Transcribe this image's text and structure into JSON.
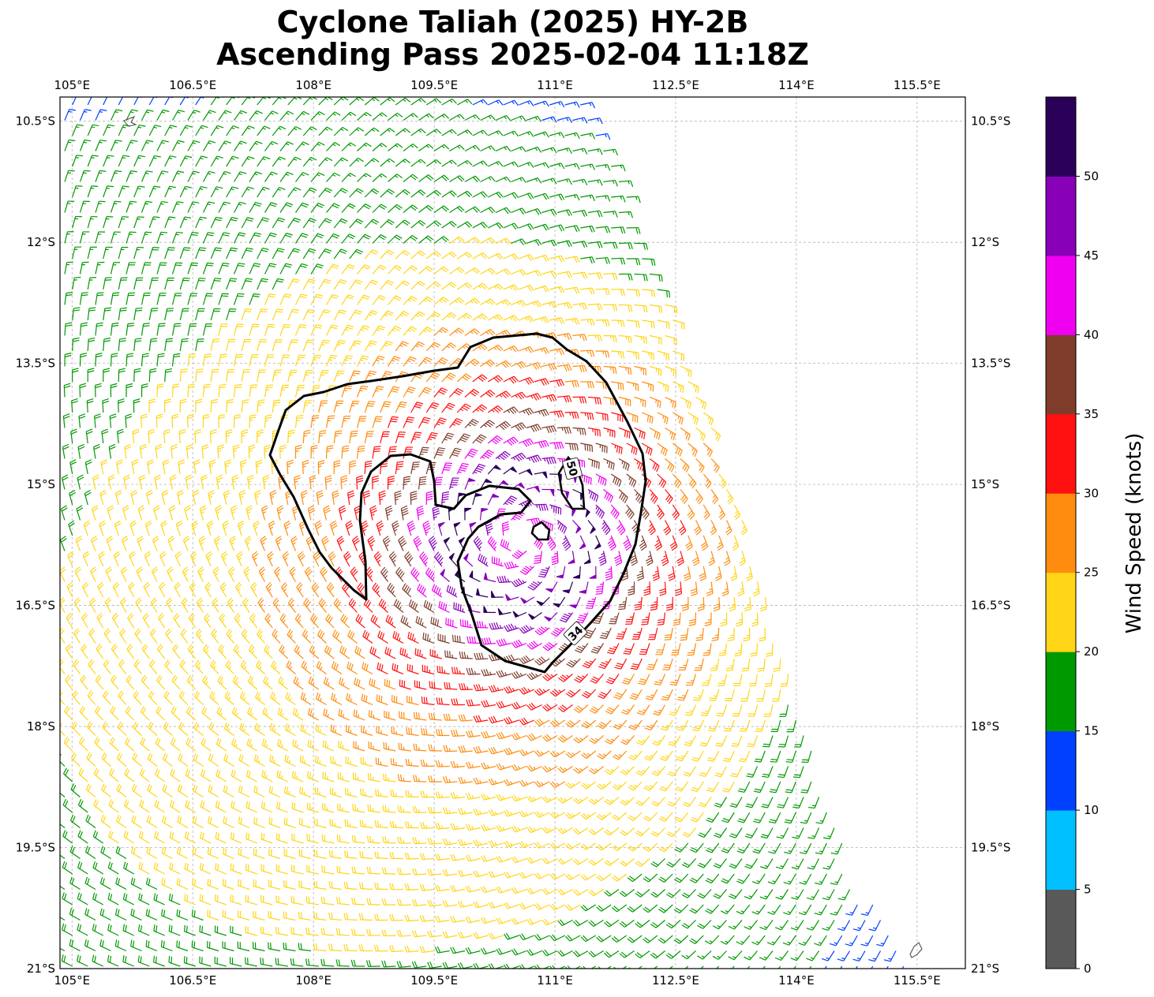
{
  "title": {
    "line1": "Cyclone Taliah (2025) HY-2B",
    "line2": "Ascending Pass 2025-02-04 11:18Z"
  },
  "map": {
    "lon_range": [
      104.85,
      116.1
    ],
    "lat_range": [
      -21.0,
      -10.2
    ],
    "lon_ticks": [
      {
        "value": 105.0,
        "label": "105°E"
      },
      {
        "value": 106.5,
        "label": "106.5°E"
      },
      {
        "value": 108.0,
        "label": "108°E"
      },
      {
        "value": 109.5,
        "label": "109.5°E"
      },
      {
        "value": 111.0,
        "label": "111°E"
      },
      {
        "value": 112.5,
        "label": "112.5°E"
      },
      {
        "value": 114.0,
        "label": "114°E"
      },
      {
        "value": 115.5,
        "label": "115.5°E"
      }
    ],
    "lat_ticks": [
      {
        "value": -10.5,
        "label": "10.5°S"
      },
      {
        "value": -12.0,
        "label": "12°S"
      },
      {
        "value": -13.5,
        "label": "13.5°S"
      },
      {
        "value": -15.0,
        "label": "15°S"
      },
      {
        "value": -16.5,
        "label": "16.5°S"
      },
      {
        "value": -18.0,
        "label": "18°S"
      },
      {
        "value": -19.5,
        "label": "19.5°S"
      },
      {
        "value": -21.0,
        "label": "21°S"
      }
    ],
    "gridlines": true,
    "cyclone_center": {
      "lon": 110.6,
      "lat": -15.7
    },
    "swath_east_edge": [
      {
        "lon": 111.5,
        "lat": -10.3
      },
      {
        "lon": 112.3,
        "lat": -12.5
      },
      {
        "lon": 113.2,
        "lat": -15.0
      },
      {
        "lon": 114.1,
        "lat": -18.0
      },
      {
        "lon": 114.7,
        "lat": -19.8
      },
      {
        "lon": 115.5,
        "lat": -21.0
      }
    ],
    "contours": [
      {
        "value": 34,
        "label": "34"
      },
      {
        "value": 50,
        "label": "50"
      }
    ],
    "island_outlines": [
      "christmas-island",
      "islet-southeast"
    ]
  },
  "colorbar": {
    "label": "Wind Speed (knots)",
    "ticks": [
      "0",
      "5",
      "10",
      "15",
      "20",
      "25",
      "30",
      "35",
      "40",
      "45",
      "50"
    ],
    "colors": [
      "#595959",
      "#00bfff",
      "#0040ff",
      "#009900",
      "#ffd515",
      "#ff8c0e",
      "#ff1010",
      "#7f3c2a",
      "#f000f0",
      "#8800b8",
      "#2b0058"
    ]
  }
}
